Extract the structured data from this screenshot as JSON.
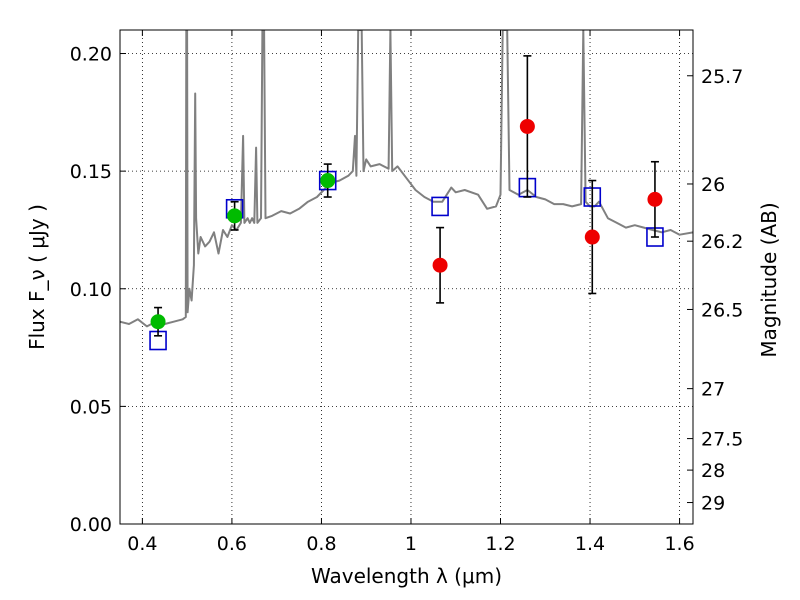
{
  "chart_data": {
    "type": "scatter",
    "title": "",
    "xlabel": "Wavelength  λ (μm)",
    "ylabel": "Flux  F_ν  ( μJy )",
    "ylabel_right": "Magnitude (AB)",
    "xlim": [
      0.35,
      1.63
    ],
    "ylim": [
      0.0,
      0.21
    ],
    "grid": true,
    "legend": "none",
    "x_ticks": [
      {
        "value": 0.4,
        "label": "0.4"
      },
      {
        "value": 0.6,
        "label": "0.6"
      },
      {
        "value": 0.8,
        "label": "0.8"
      },
      {
        "value": 1.0,
        "label": "1"
      },
      {
        "value": 1.2,
        "label": "1.2"
      },
      {
        "value": 1.4,
        "label": "1.4"
      },
      {
        "value": 1.6,
        "label": "1.6"
      }
    ],
    "y_ticks": [
      {
        "value": 0.0,
        "label": "0.00"
      },
      {
        "value": 0.05,
        "label": "0.05"
      },
      {
        "value": 0.1,
        "label": "0.10"
      },
      {
        "value": 0.15,
        "label": "0.15"
      },
      {
        "value": 0.2,
        "label": "0.20"
      }
    ],
    "right_ticks": [
      {
        "mag": 25.7,
        "label": "25.7"
      },
      {
        "mag": 26,
        "label": "26"
      },
      {
        "mag": 26.2,
        "label": "26.2"
      },
      {
        "mag": 26.5,
        "label": "26.5"
      },
      {
        "mag": 27,
        "label": "27"
      },
      {
        "mag": 27.5,
        "label": "27.5"
      },
      {
        "mag": 28,
        "label": "28"
      },
      {
        "mag": 29,
        "label": "29"
      }
    ],
    "series": [
      {
        "kind": "spectrum",
        "color": "#808080",
        "points": [
          [
            0.35,
            0.086
          ],
          [
            0.37,
            0.085
          ],
          [
            0.39,
            0.087
          ],
          [
            0.41,
            0.084
          ],
          [
            0.43,
            0.086
          ],
          [
            0.45,
            0.085
          ],
          [
            0.47,
            0.086
          ],
          [
            0.49,
            0.087
          ],
          [
            0.497,
            0.088
          ],
          [
            0.498,
            0.21
          ],
          [
            0.5,
            0.21
          ],
          [
            0.501,
            0.09
          ],
          [
            0.505,
            0.1
          ],
          [
            0.51,
            0.095
          ],
          [
            0.515,
            0.11
          ],
          [
            0.518,
            0.183
          ],
          [
            0.52,
            0.13
          ],
          [
            0.525,
            0.115
          ],
          [
            0.53,
            0.122
          ],
          [
            0.54,
            0.118
          ],
          [
            0.55,
            0.12
          ],
          [
            0.56,
            0.124
          ],
          [
            0.57,
            0.115
          ],
          [
            0.58,
            0.125
          ],
          [
            0.59,
            0.122
          ],
          [
            0.6,
            0.127
          ],
          [
            0.61,
            0.125
          ],
          [
            0.62,
            0.128
          ],
          [
            0.625,
            0.165
          ],
          [
            0.628,
            0.128
          ],
          [
            0.635,
            0.13
          ],
          [
            0.64,
            0.128
          ],
          [
            0.645,
            0.13
          ],
          [
            0.65,
            0.128
          ],
          [
            0.654,
            0.16
          ],
          [
            0.657,
            0.128
          ],
          [
            0.665,
            0.13
          ],
          [
            0.668,
            0.21
          ],
          [
            0.672,
            0.21
          ],
          [
            0.675,
            0.13
          ],
          [
            0.69,
            0.131
          ],
          [
            0.71,
            0.133
          ],
          [
            0.73,
            0.132
          ],
          [
            0.75,
            0.134
          ],
          [
            0.77,
            0.137
          ],
          [
            0.79,
            0.139
          ],
          [
            0.805,
            0.142
          ],
          [
            0.82,
            0.145
          ],
          [
            0.84,
            0.146
          ],
          [
            0.86,
            0.148
          ],
          [
            0.87,
            0.15
          ],
          [
            0.875,
            0.165
          ],
          [
            0.878,
            0.148
          ],
          [
            0.882,
            0.21
          ],
          [
            0.89,
            0.21
          ],
          [
            0.894,
            0.15
          ],
          [
            0.9,
            0.155
          ],
          [
            0.91,
            0.152
          ],
          [
            0.93,
            0.153
          ],
          [
            0.95,
            0.151
          ],
          [
            0.954,
            0.21
          ],
          [
            0.958,
            0.15
          ],
          [
            0.97,
            0.152
          ],
          [
            0.99,
            0.147
          ],
          [
            1.01,
            0.142
          ],
          [
            1.03,
            0.139
          ],
          [
            1.05,
            0.137
          ],
          [
            1.07,
            0.137
          ],
          [
            1.09,
            0.143
          ],
          [
            1.1,
            0.141
          ],
          [
            1.12,
            0.142
          ],
          [
            1.15,
            0.14
          ],
          [
            1.17,
            0.134
          ],
          [
            1.19,
            0.135
          ],
          [
            1.2,
            0.14
          ],
          [
            1.205,
            0.21
          ],
          [
            1.215,
            0.21
          ],
          [
            1.22,
            0.142
          ],
          [
            1.24,
            0.14
          ],
          [
            1.26,
            0.142
          ],
          [
            1.28,
            0.139
          ],
          [
            1.3,
            0.138
          ],
          [
            1.32,
            0.136
          ],
          [
            1.34,
            0.136
          ],
          [
            1.36,
            0.135
          ],
          [
            1.38,
            0.136
          ],
          [
            1.385,
            0.21
          ],
          [
            1.39,
            0.137
          ],
          [
            1.4,
            0.135
          ],
          [
            1.41,
            0.135
          ],
          [
            1.42,
            0.137
          ],
          [
            1.44,
            0.13
          ],
          [
            1.46,
            0.128
          ],
          [
            1.48,
            0.126
          ],
          [
            1.5,
            0.127
          ],
          [
            1.52,
            0.126
          ],
          [
            1.54,
            0.125
          ],
          [
            1.56,
            0.124
          ],
          [
            1.58,
            0.125
          ],
          [
            1.6,
            0.123
          ],
          [
            1.63,
            0.124
          ]
        ]
      },
      {
        "kind": "model-photometry",
        "color": "#0000cc",
        "marker": "open-square",
        "points": [
          [
            0.435,
            0.078
          ],
          [
            0.606,
            0.134
          ],
          [
            0.814,
            0.146
          ],
          [
            1.065,
            0.135
          ],
          [
            1.26,
            0.143
          ],
          [
            1.405,
            0.139
          ],
          [
            1.545,
            0.122
          ]
        ]
      },
      {
        "kind": "observed-optical",
        "color": "#00bb00",
        "marker": "filled-circle",
        "points": [
          {
            "x": 0.435,
            "y": 0.086,
            "err": 0.006
          },
          {
            "x": 0.606,
            "y": 0.131,
            "err": 0.006
          },
          {
            "x": 0.814,
            "y": 0.146,
            "err": 0.007
          }
        ]
      },
      {
        "kind": "observed-nir",
        "color": "#ee0000",
        "marker": "filled-circle",
        "points": [
          {
            "x": 1.065,
            "y": 0.11,
            "err": 0.016
          },
          {
            "x": 1.26,
            "y": 0.169,
            "err": 0.03
          },
          {
            "x": 1.405,
            "y": 0.122,
            "err": 0.024
          },
          {
            "x": 1.545,
            "y": 0.138,
            "err": 0.016
          }
        ]
      }
    ]
  }
}
